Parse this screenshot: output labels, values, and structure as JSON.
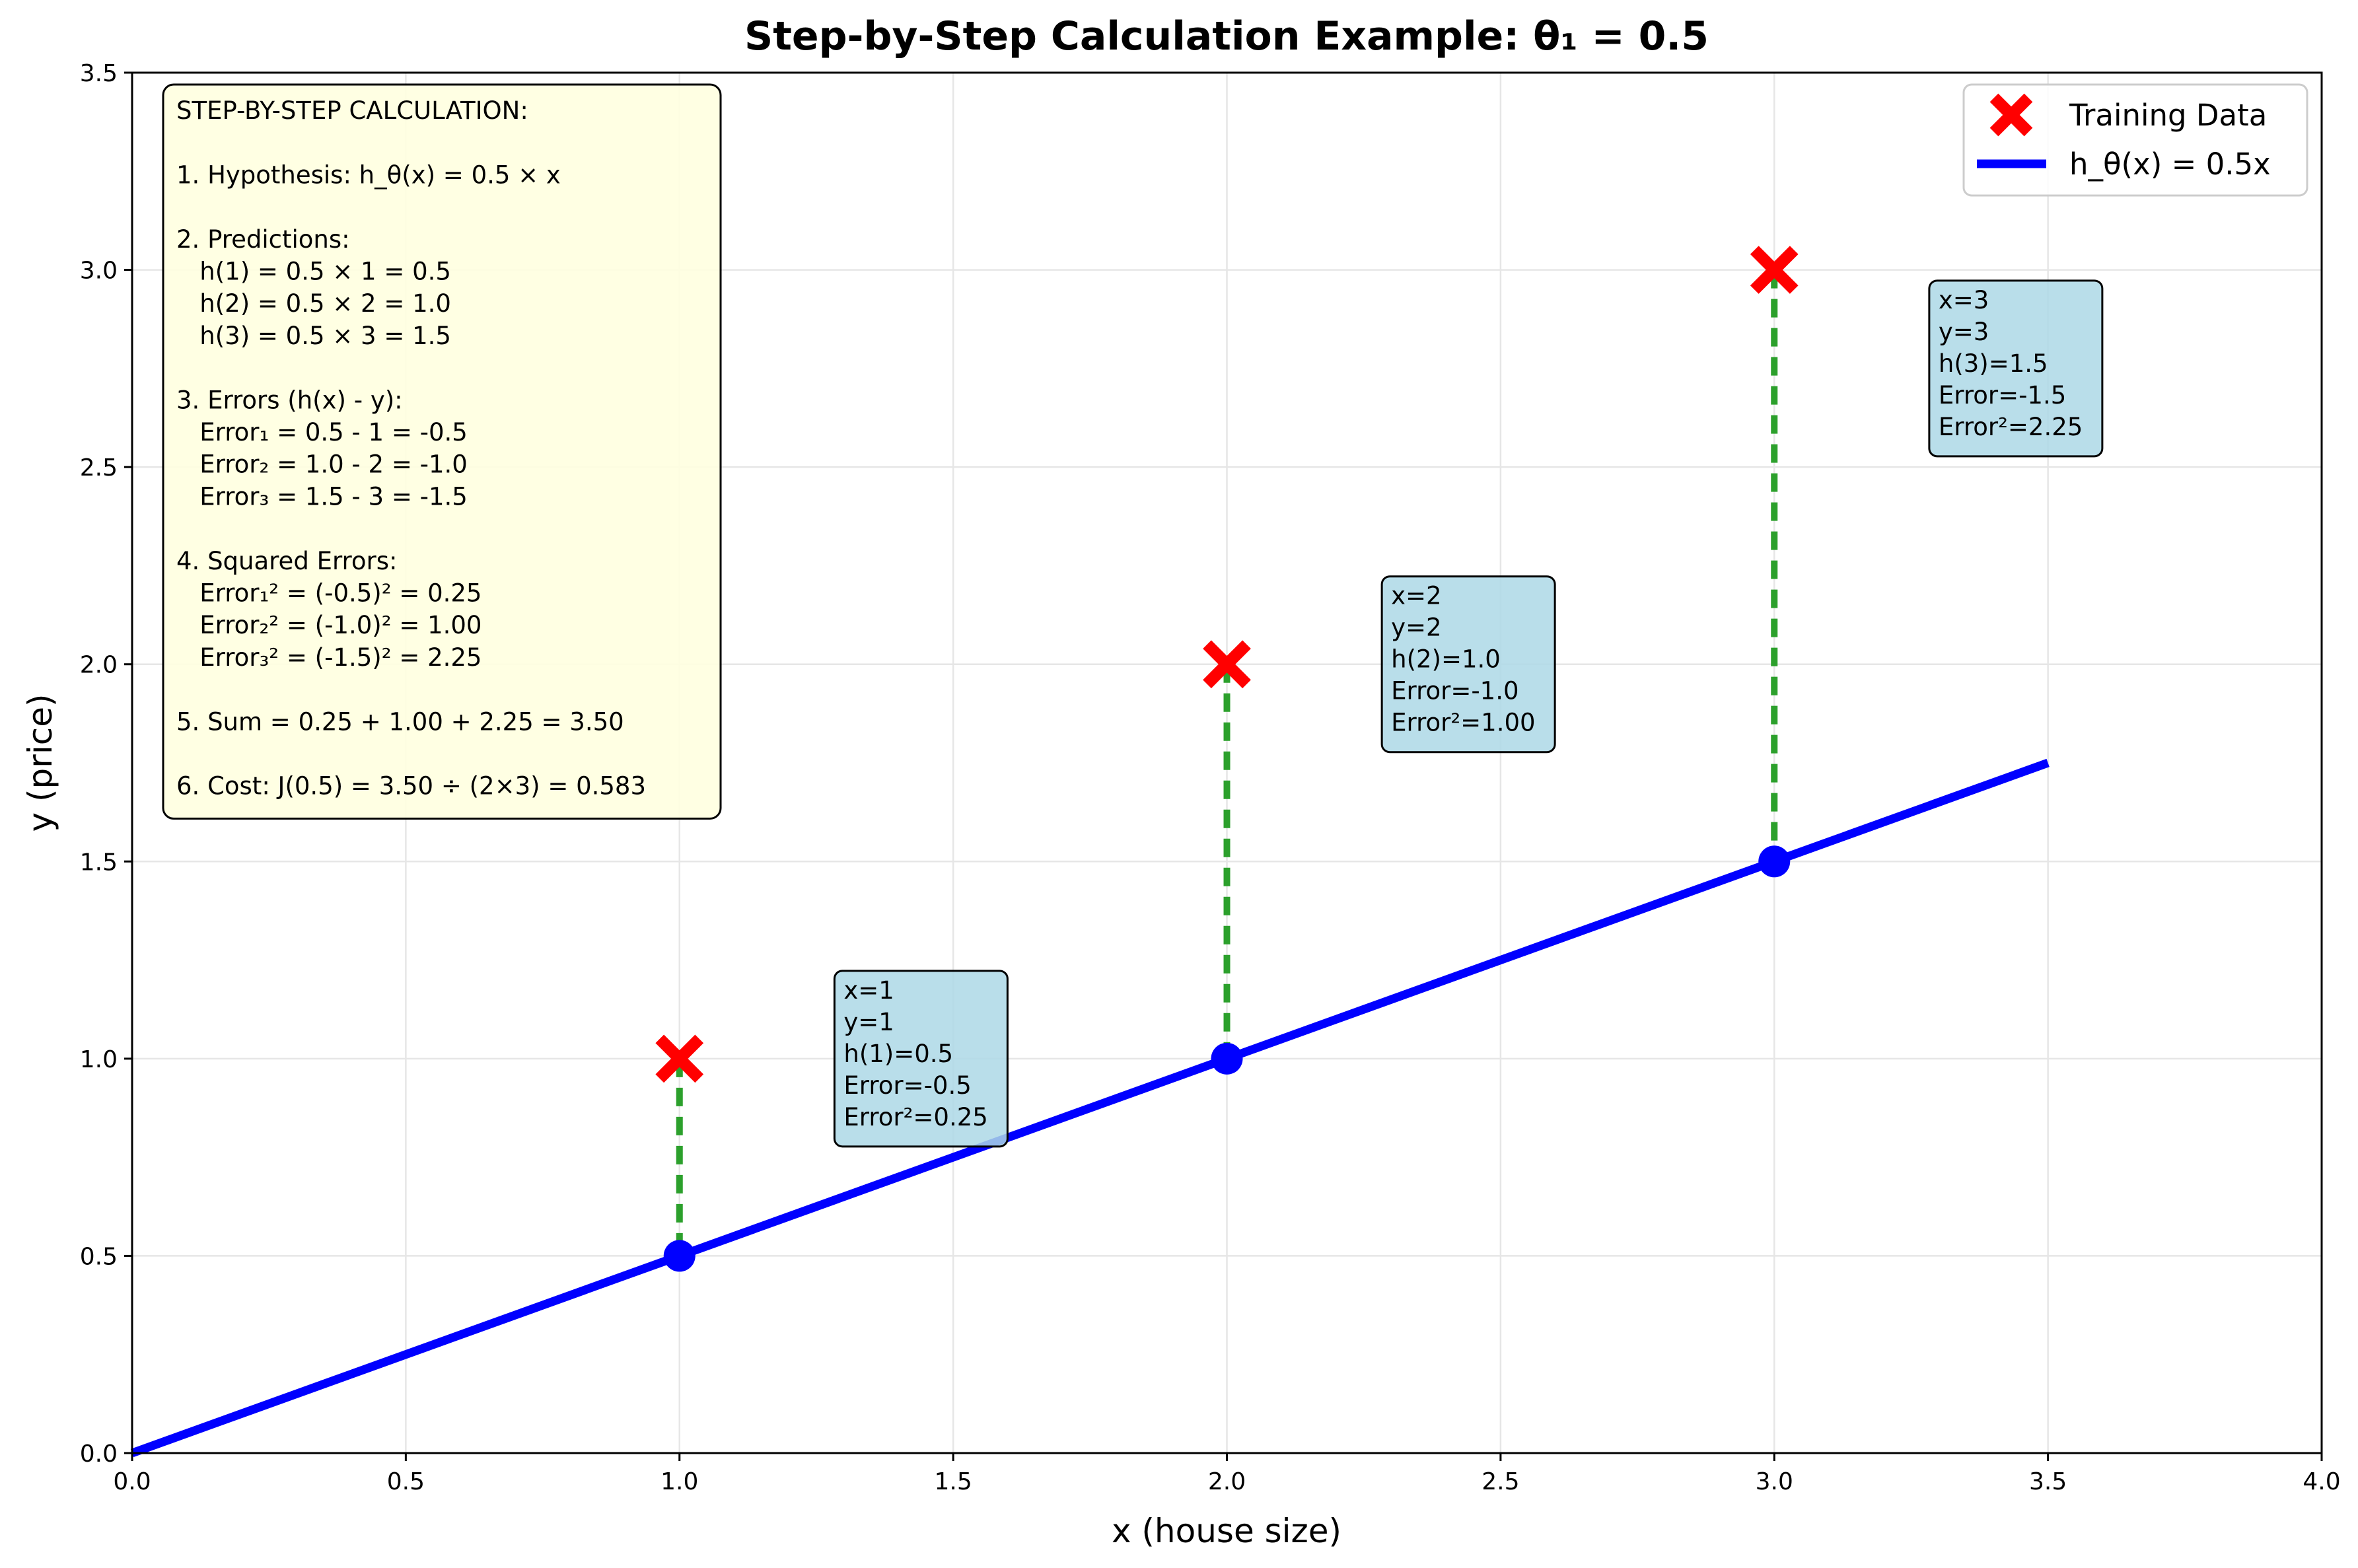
{
  "colors": {
    "line": "#0000ff",
    "points": "#ff0000",
    "residual": "#2ca02c",
    "calc_box_bg": "#ffffe0",
    "annot_box_bg": "#add8e6"
  },
  "chart_data": {
    "type": "line",
    "title": "Step-by-Step Calculation Example: θ₁ = 0.5",
    "xlabel": "x (house size)",
    "ylabel": "y (price)",
    "xlim": [
      0,
      4
    ],
    "ylim": [
      0,
      3.5
    ],
    "xticks": [
      "0.0",
      "0.5",
      "1.0",
      "1.5",
      "2.0",
      "2.5",
      "3.0",
      "3.5",
      "4.0"
    ],
    "yticks": [
      "0.0",
      "0.5",
      "1.0",
      "1.5",
      "2.0",
      "2.5",
      "3.0",
      "3.5"
    ],
    "grid": true,
    "legend_position": "top-right",
    "series": [
      {
        "name": "Training Data",
        "type": "scatter",
        "marker": "x",
        "x": [
          1,
          2,
          3
        ],
        "y": [
          1,
          2,
          3
        ]
      },
      {
        "name": "h_θ(x) = 0.5x",
        "type": "line",
        "x": [
          0,
          3.5
        ],
        "y": [
          0,
          1.75
        ]
      }
    ],
    "predictions": {
      "x": [
        1,
        2,
        3
      ],
      "y": [
        0.5,
        1.0,
        1.5
      ]
    },
    "calculation_box": [
      "STEP-BY-STEP CALCULATION:",
      "",
      "1. Hypothesis: h_θ(x) = 0.5 × x",
      "",
      "2. Predictions:",
      "   h(1) = 0.5 × 1 = 0.5",
      "   h(2) = 0.5 × 2 = 1.0",
      "   h(3) = 0.5 × 3 = 1.5",
      "",
      "3. Errors (h(x) - y):",
      "   Error₁ = 0.5 - 1 = -0.5",
      "   Error₂ = 1.0 - 2 = -1.0",
      "   Error₃ = 1.5 - 3 = -1.5",
      "",
      "4. Squared Errors:",
      "   Error₁² = (-0.5)² = 0.25",
      "   Error₂² = (-1.0)² = 1.00",
      "   Error₃² = (-1.5)² = 2.25",
      "",
      "5. Sum = 0.25 + 1.00 + 2.25 = 3.50",
      "",
      "6. Cost: J(0.5) = 3.50 ÷ (2×3) = 0.583"
    ],
    "annotations": [
      {
        "x": 1.3,
        "y": 1.0,
        "lines": [
          "x=1",
          "y=1",
          "h(1)=0.5",
          "Error=-0.5",
          "Error²=0.25"
        ]
      },
      {
        "x": 2.3,
        "y": 2.0,
        "lines": [
          "x=2",
          "y=2",
          "h(2)=1.0",
          "Error=-1.0",
          "Error²=1.00"
        ]
      },
      {
        "x": 3.3,
        "y": 2.75,
        "lines": [
          "x=3",
          "y=3",
          "h(3)=1.5",
          "Error=-1.5",
          "Error²=2.25"
        ]
      }
    ]
  }
}
